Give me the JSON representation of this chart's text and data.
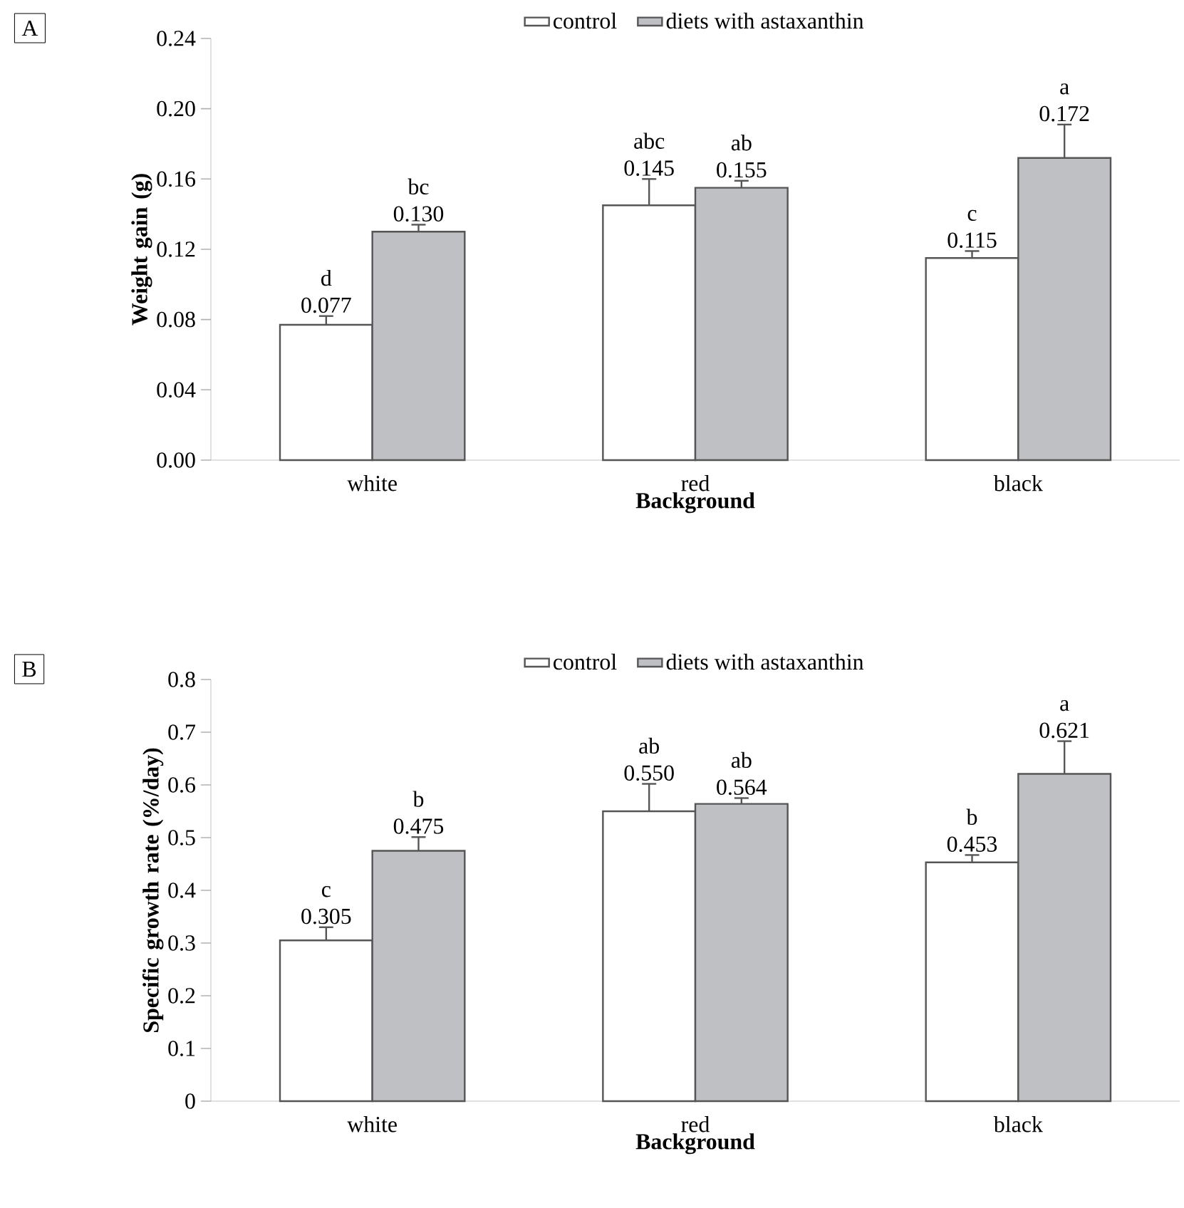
{
  "chart_data": [
    {
      "type": "bar",
      "xlabel": "Background",
      "ylabel": "Weight gain (g)",
      "categories": [
        "white",
        "red",
        "black"
      ],
      "ylim": [
        0,
        0.24
      ],
      "yticks": [
        {
          "value": 0,
          "label": "0.00"
        },
        0.04,
        0.08,
        0.12,
        0.16,
        {
          "value": 0.2,
          "label": "0.20"
        },
        0.24
      ],
      "legend": "top",
      "series": [
        {
          "name": "control",
          "color": "#ffffff",
          "values": [
            0.077,
            0.145,
            0.115
          ],
          "errors": [
            0.005,
            0.015,
            0.004
          ],
          "value_labels": [
            "0.077",
            "0.145",
            "0.115"
          ]
        },
        {
          "name": "diets with astaxanthin",
          "color": "#bfc0c4",
          "values": [
            0.13,
            0.155,
            0.172
          ],
          "errors": [
            0.004,
            0.004,
            0.019
          ],
          "value_labels": [
            "0.130",
            "0.155",
            "0.172"
          ]
        }
      ],
      "annotations": [
        "A",
        "d",
        "bc",
        "abc",
        "ab",
        "c",
        "a"
      ]
    },
    {
      "type": "bar",
      "xlabel": "Background",
      "ylabel": "Specific growth rate (%/day)",
      "categories": [
        "white",
        "red",
        "black"
      ],
      "ylim": [
        0,
        0.8
      ],
      "yticks": [
        0,
        0.1,
        0.2,
        0.3,
        0.4,
        0.5,
        0.6,
        0.7,
        0.8
      ],
      "legend": "top",
      "series": [
        {
          "name": "control",
          "color": "#ffffff",
          "values": [
            0.305,
            0.55,
            0.453
          ],
          "errors": [
            0.025,
            0.052,
            0.014
          ],
          "value_labels": [
            "0.305",
            "0.550",
            "0.453"
          ]
        },
        {
          "name": "diets with astaxanthin",
          "color": "#bfc0c4",
          "values": [
            0.475,
            0.564,
            0.621
          ],
          "errors": [
            0.026,
            0.011,
            0.062
          ],
          "value_labels": [
            "0.475",
            "0.564",
            "0.621"
          ]
        }
      ],
      "annotations": [
        "B",
        "c",
        "b",
        "ab",
        "ab",
        "b",
        "a"
      ]
    }
  ]
}
